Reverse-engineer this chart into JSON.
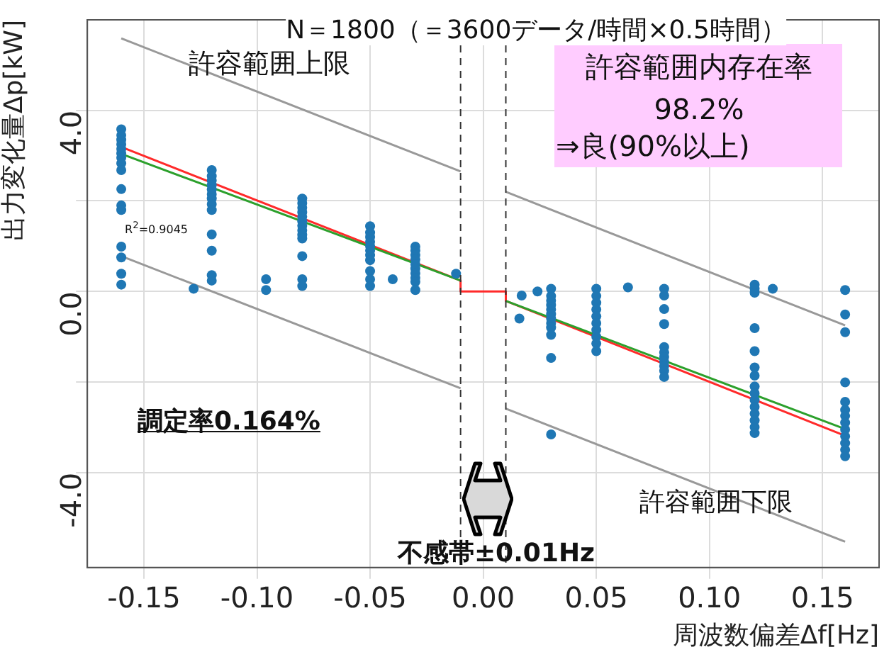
{
  "chart_data": {
    "type": "scatter",
    "title": "N＝1800（＝3600データ/時間×0.5時間）",
    "xlabel": "周波数偏差Δf[Hz]",
    "ylabel": "出力変化量Δp[kW]",
    "xlim": [
      -0.175,
      0.175
    ],
    "ylim": [
      -6.1,
      6.0
    ],
    "xticks": [
      -0.15,
      {
        "value": -0.1,
        "label": "-0.10"
      },
      -0.05,
      {
        "value": 0,
        "label": "0.00"
      },
      0.05,
      {
        "value": 0.1,
        "label": "0.10"
      },
      0.15
    ],
    "yticks": [
      {
        "value": -4,
        "label": "-4.0"
      },
      {
        "value": -2,
        "label": null
      },
      {
        "value": 0,
        "label": "0.0"
      },
      {
        "value": 2,
        "label": null
      },
      {
        "value": 4,
        "label": "4.0"
      }
    ],
    "grid": true,
    "legend": false,
    "series": [
      {
        "marker": "circle",
        "color": "#1f77b4",
        "x": [
          -0.16,
          -0.16,
          -0.16,
          -0.16,
          -0.16,
          -0.16,
          -0.16,
          -0.16,
          -0.16,
          -0.16,
          -0.16,
          -0.16,
          -0.16,
          -0.16,
          -0.16,
          -0.16,
          -0.128,
          -0.12,
          -0.12,
          -0.12,
          -0.12,
          -0.12,
          -0.12,
          -0.12,
          -0.12,
          -0.12,
          -0.12,
          -0.12,
          -0.12,
          -0.12,
          -0.096,
          -0.096,
          -0.08,
          -0.08,
          -0.08,
          -0.08,
          -0.08,
          -0.08,
          -0.08,
          -0.08,
          -0.08,
          -0.08,
          -0.08,
          -0.08,
          -0.08,
          -0.05,
          -0.05,
          -0.05,
          -0.05,
          -0.05,
          -0.05,
          -0.05,
          -0.05,
          -0.05,
          -0.05,
          -0.05,
          -0.04,
          -0.03,
          -0.03,
          -0.03,
          -0.03,
          -0.03,
          -0.03,
          -0.03,
          -0.03,
          -0.03,
          -0.03,
          -0.012,
          0.016,
          0.017,
          0.024,
          0.03,
          0.03,
          0.03,
          0.03,
          0.03,
          0.03,
          0.03,
          0.03,
          0.03,
          0.03,
          0.03,
          0.03,
          0.05,
          0.05,
          0.05,
          0.05,
          0.05,
          0.05,
          0.05,
          0.05,
          0.05,
          0.05,
          0.064,
          0.08,
          0.08,
          0.08,
          0.08,
          0.08,
          0.08,
          0.08,
          0.08,
          0.08,
          0.08,
          0.08,
          0.12,
          0.12,
          0.12,
          0.12,
          0.12,
          0.12,
          0.12,
          0.12,
          0.12,
          0.12,
          0.12,
          0.12,
          0.12,
          0.12,
          0.12,
          0.128,
          0.16,
          0.16,
          0.16,
          0.16,
          0.16,
          0.16,
          0.16,
          0.16,
          0.16,
          0.16,
          0.16,
          0.16,
          0.16
        ],
        "values": [
          3.58,
          3.45,
          3.35,
          3.25,
          3.15,
          3.05,
          2.95,
          2.83,
          2.68,
          2.26,
          1.9,
          1.8,
          0.99,
          0.75,
          0.39,
          0.15,
          0.06,
          2.68,
          2.55,
          2.45,
          2.35,
          2.25,
          2.15,
          2.05,
          1.93,
          1.8,
          1.26,
          0.9,
          0.36,
          0.24,
          0.27,
          0.03,
          2.05,
          1.95,
          1.85,
          1.75,
          1.65,
          1.55,
          1.45,
          1.35,
          1.25,
          1.17,
          0.78,
          0.27,
          0.12,
          1.44,
          1.3,
          1.2,
          1.1,
          1.0,
          0.9,
          0.8,
          0.69,
          0.45,
          0.27,
          0.12,
          0.27,
          0.99,
          0.9,
          0.8,
          0.7,
          0.6,
          0.5,
          0.4,
          0.3,
          0.21,
          0.03,
          0.39,
          -0.6,
          -0.09,
          0.0,
          0.06,
          -0.1,
          -0.2,
          -0.3,
          -0.4,
          -0.5,
          -0.6,
          -0.7,
          -0.8,
          -0.96,
          -1.47,
          -3.16,
          0.06,
          -0.1,
          -0.25,
          -0.4,
          -0.55,
          -0.7,
          -0.85,
          -1.0,
          -1.15,
          -1.32,
          0.09,
          0.06,
          -0.09,
          -0.39,
          -0.72,
          -1.23,
          -1.35,
          -1.45,
          -1.55,
          -1.65,
          -1.75,
          -1.89,
          0.15,
          0.06,
          -0.03,
          -0.81,
          -1.32,
          -1.68,
          -1.86,
          -2.1,
          -2.25,
          -2.4,
          -2.55,
          -2.7,
          -2.85,
          -3.0,
          -3.13,
          0.06,
          0.03,
          -0.51,
          -0.9,
          -2.01,
          -2.44,
          -2.62,
          -2.75,
          -2.9,
          -3.05,
          -3.2,
          -3.35,
          -3.5,
          -3.64
        ]
      },
      {
        "type": "line",
        "color": "#999999",
        "x": [
          -0.16,
          -0.01
        ],
        "values": [
          5.59,
          2.65
        ]
      },
      {
        "type": "line",
        "color": "#999999",
        "x": [
          0.01,
          0.16
        ],
        "values": [
          2.2,
          -0.75
        ]
      },
      {
        "type": "line",
        "color": "#999999",
        "x": [
          -0.16,
          -0.01
        ],
        "values": [
          0.78,
          -2.14
        ]
      },
      {
        "type": "line",
        "color": "#999999",
        "x": [
          0.01,
          0.16
        ],
        "values": [
          -2.59,
          -5.53
        ]
      },
      {
        "type": "line",
        "color": "#2ca02c",
        "x": [
          -0.16,
          -0.01
        ],
        "values": [
          3.04,
          0.24
        ]
      },
      {
        "type": "line",
        "color": "#2ca02c",
        "x": [
          0.01,
          0.16
        ],
        "values": [
          -0.21,
          -3.04
        ]
      },
      {
        "type": "line",
        "color": "#ff2a2a",
        "x": [
          -0.16,
          -0.01,
          -0.01,
          0.01,
          0.01,
          0.16
        ],
        "values": [
          3.19,
          0.24,
          0,
          0,
          -0.21,
          -3.19
        ]
      }
    ],
    "ref_lines": [
      {
        "axis": "x",
        "value": -0.01,
        "color": "#333333",
        "line_style": "dashed"
      },
      {
        "axis": "x",
        "value": 0.01,
        "color": "#333333",
        "line_style": "dashed"
      }
    ],
    "annotations": [
      "許容範囲上限",
      "R$^{2}$=0.9045",
      "許容範囲内存在率",
      "98.2%",
      "⇒良(90%以上)",
      "調定率0.164%",
      "不感帯±0.01Hz",
      "許容範囲下限"
    ]
  }
}
